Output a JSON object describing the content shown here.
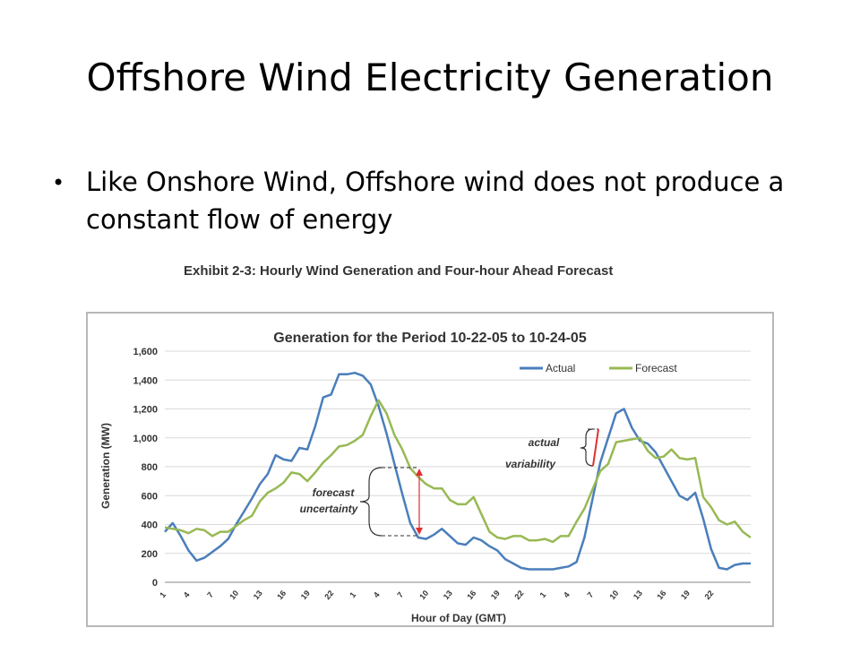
{
  "slide": {
    "title": "Offshore Wind Electricity Generation",
    "bullet": "Like Onshore Wind, Offshore wind does not produce a constant flow of energy",
    "exhibit_caption": "Exhibit 2-3: Hourly Wind Generation and Four-hour Ahead Forecast"
  },
  "chart_data": {
    "type": "line",
    "title": "Generation for the Period 10-22-05 to 10-24-05",
    "xlabel": "Hour of Day (GMT)",
    "ylabel": "Generation (MW)",
    "ylim": [
      0,
      1600
    ],
    "yticks": [
      "0",
      "200",
      "400",
      "600",
      "800",
      "1,000",
      "1,200",
      "1,400",
      "1,600"
    ],
    "xtick_labels": [
      "1",
      "4",
      "7",
      "10",
      "13",
      "16",
      "19",
      "22",
      "1",
      "4",
      "7",
      "10",
      "13",
      "16",
      "19",
      "22",
      "1",
      "4",
      "7",
      "10",
      "13",
      "16",
      "19",
      "22"
    ],
    "legend_position": "top-right",
    "grid": "horizontal",
    "series": [
      {
        "name": "Actual",
        "color": "#4a7ebb",
        "values": [
          350,
          410,
          320,
          220,
          150,
          170,
          210,
          250,
          300,
          400,
          490,
          580,
          680,
          750,
          880,
          850,
          840,
          930,
          920,
          1080,
          1280,
          1300,
          1440,
          1440,
          1450,
          1430,
          1370,
          1220,
          1030,
          820,
          610,
          410,
          310,
          300,
          330,
          370,
          320,
          270,
          260,
          310,
          290,
          250,
          220,
          160,
          130,
          100,
          90,
          90,
          90,
          90,
          100,
          110,
          140,
          310,
          570,
          830,
          1000,
          1170,
          1200,
          1070,
          980,
          960,
          900,
          800,
          700,
          600,
          570,
          620,
          440,
          230,
          100,
          90,
          120,
          130,
          130
        ]
      },
      {
        "name": "Forecast",
        "color": "#98b954",
        "values": [
          380,
          370,
          360,
          340,
          370,
          360,
          320,
          350,
          350,
          390,
          430,
          460,
          560,
          620,
          650,
          690,
          760,
          750,
          700,
          760,
          830,
          880,
          940,
          950,
          980,
          1020,
          1150,
          1260,
          1170,
          1020,
          920,
          790,
          730,
          680,
          650,
          650,
          570,
          540,
          540,
          590,
          470,
          350,
          310,
          300,
          320,
          320,
          290,
          290,
          300,
          280,
          320,
          320,
          420,
          510,
          640,
          770,
          820,
          970,
          980,
          990,
          1000,
          910,
          860,
          870,
          920,
          860,
          850,
          860,
          590,
          520,
          430,
          400,
          420,
          350,
          310
        ]
      }
    ],
    "annotations": [
      "actual variability",
      "forecast uncertainty"
    ]
  }
}
